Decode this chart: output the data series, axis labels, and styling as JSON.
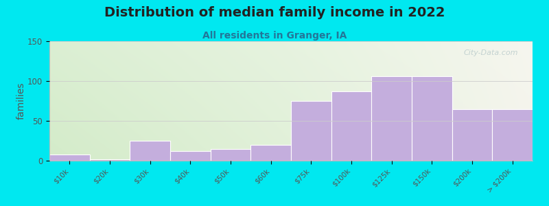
{
  "title": "Distribution of median family income in 2022",
  "subtitle": "All residents in Granger, IA",
  "ylabel": "families",
  "categories": [
    "$10k",
    "$20k",
    "$30k",
    "$40k",
    "$50k",
    "$60k",
    "$75k",
    "$100k",
    "$125k",
    "$150k",
    "$200k",
    "> $200k"
  ],
  "values": [
    8,
    2,
    25,
    12,
    15,
    20,
    75,
    87,
    106,
    106,
    65,
    65
  ],
  "bar_color": "#c4aedd",
  "bar_edgecolor": "#d4c4e8",
  "background_outer": "#00e8f0",
  "ylim": [
    0,
    150
  ],
  "yticks": [
    0,
    50,
    100,
    150
  ],
  "title_fontsize": 14,
  "subtitle_fontsize": 10,
  "title_color": "#222222",
  "subtitle_color": "#227799",
  "ylabel_fontsize": 10,
  "watermark_text": "City-Data.com",
  "watermark_color": "#bbcccc",
  "plot_bg_left": "#cce8c0",
  "plot_bg_right": "#f0f0e8"
}
